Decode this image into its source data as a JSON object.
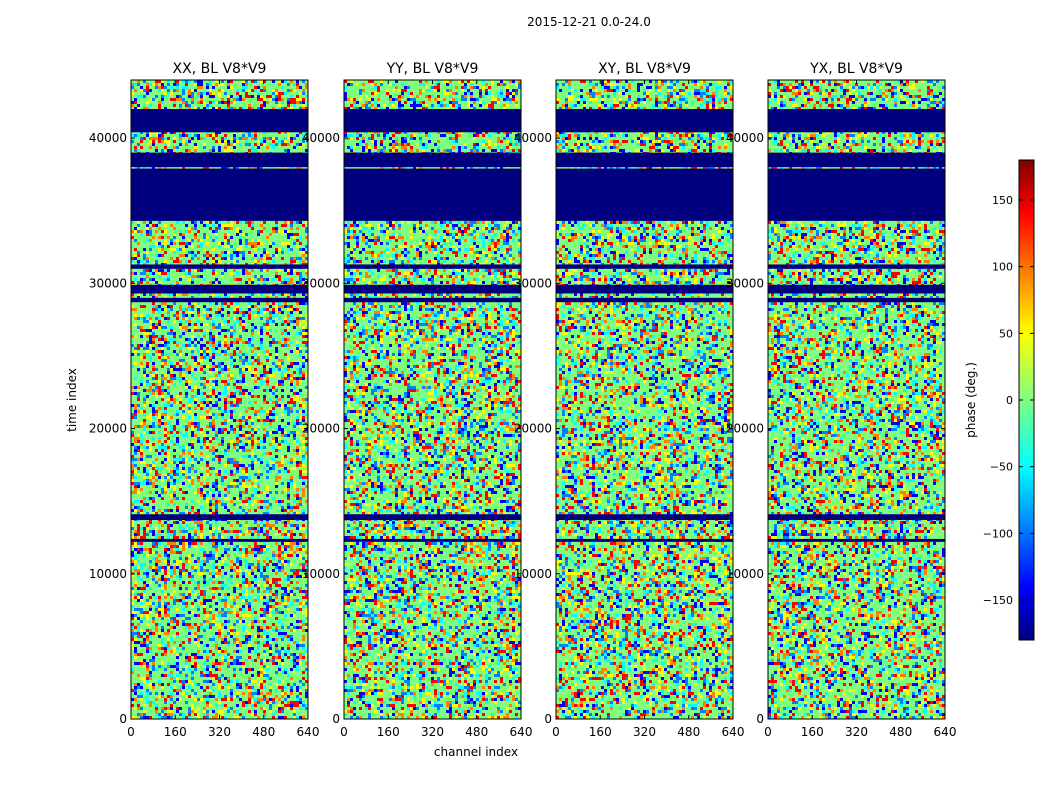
{
  "chart_data": {
    "type": "heatmap",
    "suptitle": "2015-12-21 0.0-24.0",
    "xlabel": "channel index",
    "ylabel": "time index",
    "xlim": [
      0,
      640
    ],
    "ylim": [
      0,
      44000
    ],
    "xticks": [
      0,
      160,
      320,
      480,
      640
    ],
    "yticks": [
      0,
      10000,
      20000,
      30000,
      40000
    ],
    "panels": [
      {
        "title": "XX, BL V8*V9"
      },
      {
        "title": "YY, BL V8*V9"
      },
      {
        "title": "XY, BL V8*V9"
      },
      {
        "title": "YX, BL V8*V9"
      }
    ],
    "colorbar": {
      "label": "phase (deg.)",
      "range": [
        -180,
        180
      ],
      "ticks": [
        -150,
        -100,
        -50,
        0,
        50,
        100,
        150
      ],
      "colormap": "jet"
    },
    "flagged_bands": [
      [
        40400,
        42000
      ],
      [
        38000,
        39000
      ],
      [
        34300,
        37900
      ],
      [
        31000,
        31300
      ],
      [
        29300,
        29900
      ],
      [
        28700,
        29000
      ],
      [
        13700,
        14100
      ],
      [
        12200,
        12400
      ]
    ],
    "cmap_colors": [
      "#00007f",
      "#0000ff",
      "#007fff",
      "#00ffff",
      "#7fff7f",
      "#ffff00",
      "#ff7f00",
      "#ff0000",
      "#7f0000"
    ]
  }
}
